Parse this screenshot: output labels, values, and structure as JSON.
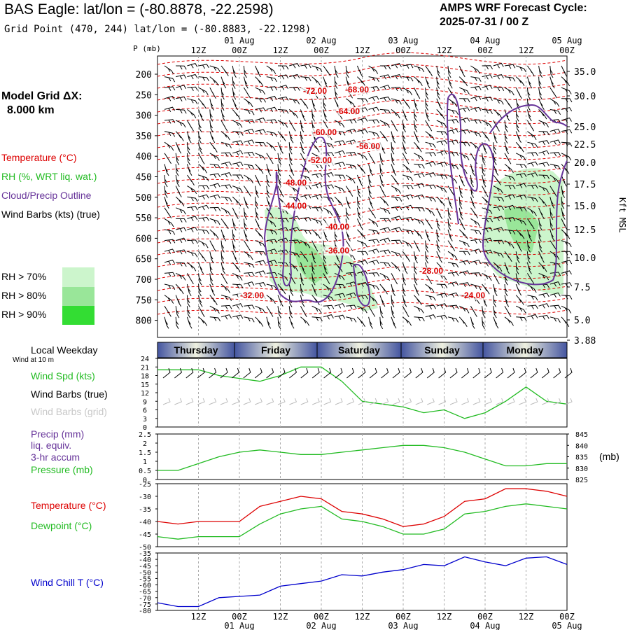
{
  "header": {
    "title": "BAS Eagle:  lat/lon = (-80.8878, -22.2598)",
    "subtitle": "Grid Point (470, 244) lat/lon = (-80.8883, -22.1298)",
    "cycle_line1": "AMPS WRF Forecast Cycle:",
    "cycle_line2": "2025-07-31 / 00  Z"
  },
  "left_panel": {
    "grid_label": "Model Grid ΔX:",
    "grid_value": "8.000 km",
    "temperature": "Temperature (°C)",
    "rh": "RH (%, WRT liq. wat.)",
    "cloud": "Cloud/Precip Outline",
    "wind": "Wind Barbs (kts) (true)",
    "rh70": "RH > 70%",
    "rh80": "RH > 80%",
    "rh90": "RH > 90%",
    "local_weekday": "Local Weekday",
    "wind_at": "Wind at 10 m"
  },
  "colors": {
    "temperature": "#dd0000",
    "rh": "#22bb22",
    "cloud": "#663399",
    "rh70": "#ccf5cc",
    "rh80": "#99e699",
    "rh90": "#33dd33",
    "wind_chill": "#0000cc",
    "day_bar": "#5566aa"
  },
  "time_axis": {
    "top_hours": [
      "12Z",
      "00Z",
      "12Z",
      "00Z",
      "12Z",
      "00Z",
      "12Z",
      "00Z",
      "12Z",
      "00Z"
    ],
    "top_dates": [
      "01 Aug",
      "02 Aug",
      "03 Aug",
      "04 Aug",
      "05 Aug"
    ],
    "days": [
      "Thursday",
      "Friday",
      "Saturday",
      "Sunday",
      "Monday"
    ]
  },
  "sounding": {
    "pressure_label": "P (mb)",
    "pressure_ticks": [
      "200",
      "250",
      "300",
      "350",
      "400",
      "450",
      "500",
      "550",
      "600",
      "650",
      "700",
      "750",
      "800"
    ],
    "height_ticks": [
      "35.0",
      "30.0",
      "25.0",
      "22.5",
      "20.0",
      "17.5",
      "15.0",
      "12.5",
      "10.0",
      "7.5",
      "5.0",
      "3.88"
    ],
    "height_label": "Kft MSL",
    "temp_labels": [
      "-72.00",
      "-68.00",
      "-64.00",
      "-60.00",
      "-56.00",
      "-52.00",
      "-48.00",
      "-44.00",
      "-40.00",
      "-36.00",
      "-32.00",
      "-28.00",
      "-24.00"
    ]
  },
  "panels": {
    "wind_spd": "Wind Spd (kts)",
    "wind_barbs_true": "Wind Barbs (true)",
    "wind_barbs_grid": "Wind Barbs (grid)",
    "wind_ticks": [
      "24",
      "21",
      "18",
      "15",
      "12",
      "9",
      "6",
      "3",
      "0"
    ],
    "precip": "Precip (mm)",
    "liq": "liq. equiv.",
    "accum": "3-hr accum",
    "pressure": "Pressure (mb)",
    "precip_ticks": [
      "2.5",
      "2",
      "1.5",
      "1",
      "0.5",
      "0"
    ],
    "pres_ticks": [
      "845",
      "840",
      "835",
      "830",
      "825"
    ],
    "pres_unit": "(mb)",
    "temperature": "Temperature (°C)",
    "dewpoint": "Dewpoint (°C)",
    "temp_ticks": [
      "-25",
      "-30",
      "-35",
      "-40",
      "-45",
      "-50"
    ],
    "windchill": "Wind Chill T (°C)",
    "wc_ticks": [
      "-35",
      "-40",
      "-45",
      "-50",
      "-55",
      "-60",
      "-65",
      "-70",
      "-75",
      "-80"
    ]
  },
  "chart_data": {
    "type": "line",
    "x_hours": [
      0,
      6,
      12,
      18,
      24,
      30,
      36,
      42,
      48,
      54,
      60,
      66,
      72,
      78,
      84,
      90,
      96,
      102,
      108,
      114,
      120
    ],
    "series": [
      {
        "name": "Wind Spd (kts)",
        "values": [
          20,
          20,
          20,
          18,
          17,
          16,
          18,
          21,
          21,
          16,
          9,
          8,
          7,
          5,
          6,
          3,
          5,
          9,
          14,
          9,
          8
        ]
      },
      {
        "name": "Pressure (mb)",
        "values": [
          829,
          829,
          832,
          835,
          837,
          838,
          837,
          836,
          836,
          837,
          838,
          839,
          840,
          840,
          839,
          837,
          834,
          831,
          831,
          832,
          832
        ]
      },
      {
        "name": "Temperature (°C)",
        "values": [
          -40,
          -41,
          -40,
          -40,
          -40,
          -34,
          -32,
          -30,
          -31,
          -36,
          -37,
          -39,
          -42,
          -41,
          -38,
          -32,
          -31,
          -27,
          -27,
          -28,
          -30
        ]
      },
      {
        "name": "Dewpoint (°C)",
        "values": [
          -46,
          -47,
          -46,
          -46,
          -46,
          -41,
          -37,
          -35,
          -34,
          -39,
          -40,
          -42,
          -45,
          -45,
          -43,
          -37,
          -36,
          -34,
          -33,
          -34,
          -35
        ]
      },
      {
        "name": "Wind Chill T (°C)",
        "values": [
          -74,
          -77,
          -77,
          -70,
          -69,
          -68,
          -61,
          -59,
          -57,
          -52,
          -53,
          -50,
          -48,
          -44,
          -45,
          -38,
          -42,
          -45,
          -39,
          -38,
          -44
        ]
      }
    ],
    "xlim": [
      0,
      120
    ],
    "ylims": {
      "wind": [
        0,
        24
      ],
      "pressure": [
        825,
        845
      ],
      "temperature": [
        -50,
        -25
      ],
      "windchill": [
        -80,
        -35
      ]
    }
  }
}
